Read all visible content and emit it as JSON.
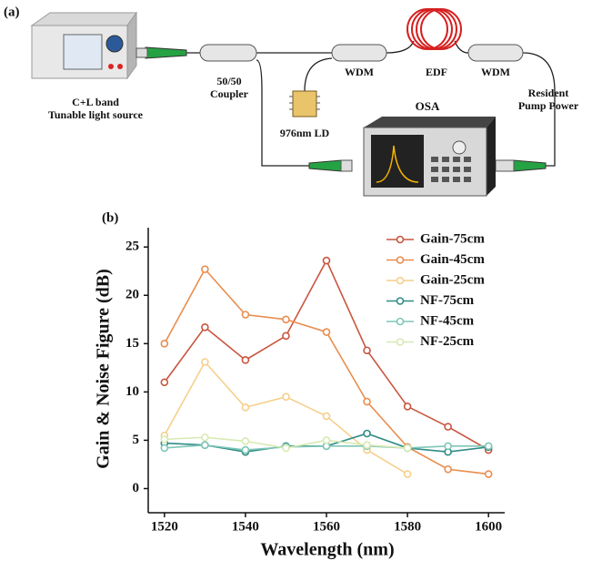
{
  "panel_a": {
    "label": "(a)",
    "labels": [
      "C+L band",
      "Tunable light source",
      "50/50",
      "Coupler",
      "WDM",
      "EDF",
      "WDM",
      "Resident",
      "Pump Power",
      "976nm LD",
      "OSA"
    ]
  },
  "panel_b_label": "(b)",
  "chart_data": {
    "type": "line",
    "x_label": "Wavelength (nm)",
    "y_label": "Gain & Noise Figure (dB)",
    "x": [
      1520,
      1530,
      1540,
      1550,
      1560,
      1570,
      1580,
      1590,
      1600
    ],
    "series": [
      {
        "name": "Gain-75cm",
        "color": "#c9553e",
        "values": [
          11,
          16.7,
          13.3,
          15.8,
          23.6,
          14.3,
          8.5,
          6.4,
          4.0
        ]
      },
      {
        "name": "Gain-45cm",
        "color": "#e98d4e",
        "values": [
          15,
          22.7,
          18,
          17.5,
          16.2,
          9,
          4.3,
          2.0,
          1.5
        ]
      },
      {
        "name": "Gain-25cm",
        "color": "#f6cf8c",
        "values": [
          5.5,
          13.1,
          8.4,
          9.5,
          7.5,
          4.0,
          1.5,
          null,
          null
        ]
      },
      {
        "name": "NF-75cm",
        "color": "#2f8c86",
        "values": [
          4.7,
          4.5,
          3.8,
          4.4,
          4.4,
          5.7,
          4.2,
          3.8,
          4.3
        ]
      },
      {
        "name": "NF-45cm",
        "color": "#7fc6b8",
        "values": [
          4.2,
          4.5,
          4.0,
          4.3,
          4.4,
          4.4,
          4.2,
          4.4,
          4.4
        ]
      },
      {
        "name": "NF-25cm",
        "color": "#d7e9b2",
        "values": [
          5.1,
          5.3,
          4.9,
          4.2,
          5.0,
          4.5,
          4.2,
          null,
          null
        ]
      }
    ],
    "xlim": [
      1516,
      1604
    ],
    "ylim": [
      -2.5,
      27
    ],
    "xticks": [
      1520,
      1540,
      1560,
      1580,
      1600
    ],
    "yticks": [
      0,
      5,
      10,
      15,
      20,
      25
    ],
    "legend": "upper right"
  }
}
